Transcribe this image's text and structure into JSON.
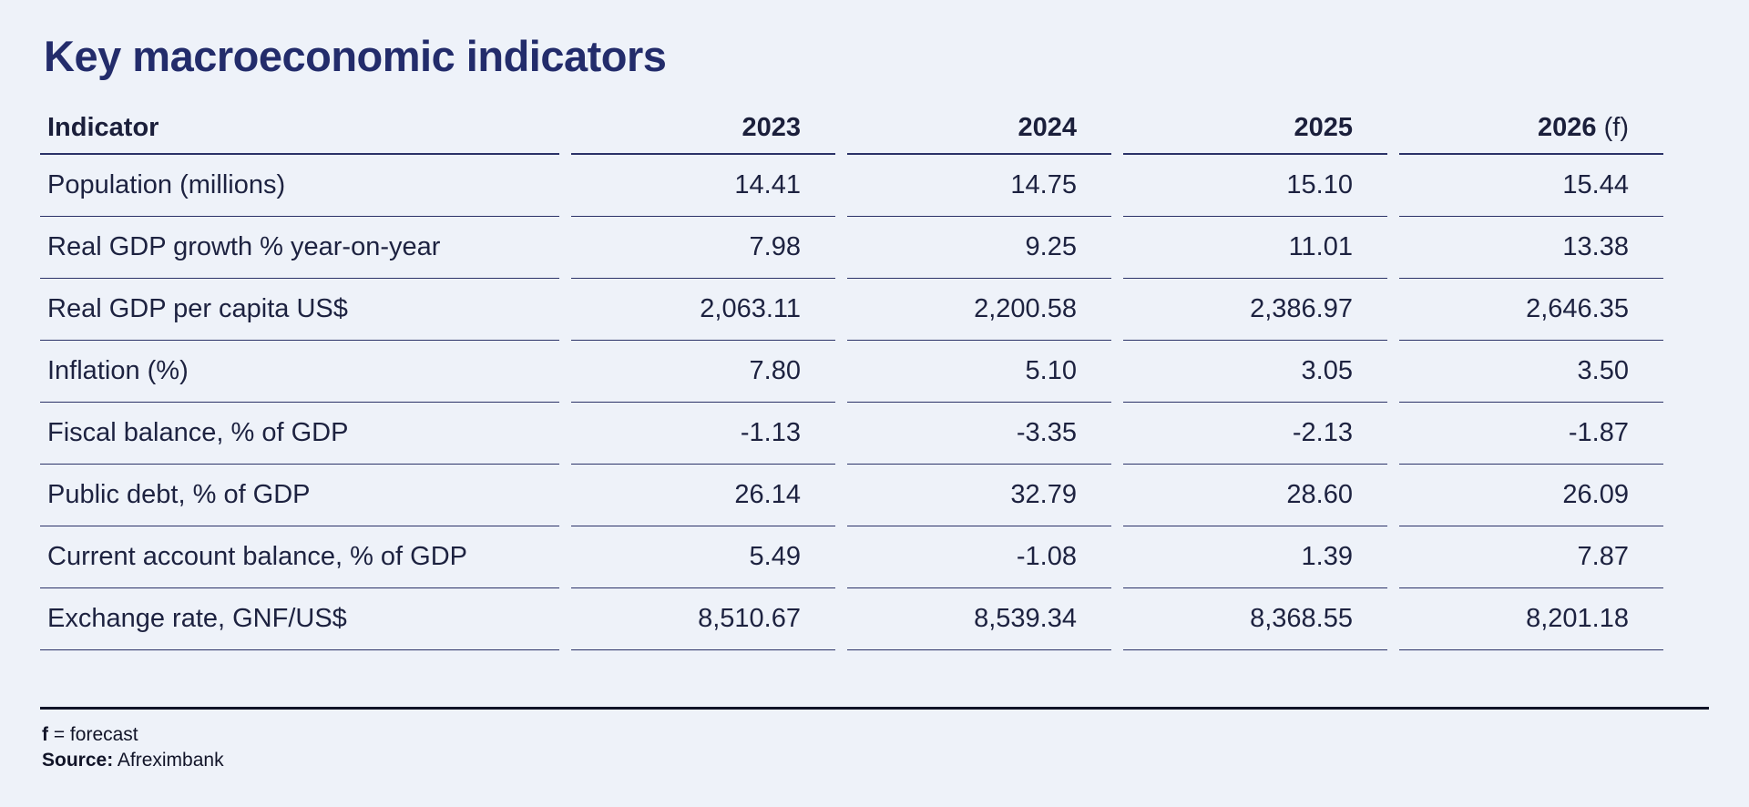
{
  "title": "Key macroeconomic indicators",
  "table": {
    "header": {
      "indicator": "Indicator",
      "years": [
        "2023",
        "2024",
        "2025",
        "2026"
      ],
      "forecast_suffix": "(f)"
    },
    "rows": [
      {
        "label": "Population (millions)",
        "values": [
          "14.41",
          "14.75",
          "15.10",
          "15.44"
        ]
      },
      {
        "label": "Real GDP growth % year-on-year",
        "values": [
          "7.98",
          "9.25",
          "11.01",
          "13.38"
        ]
      },
      {
        "label": "Real GDP per capita US$",
        "values": [
          "2,063.11",
          "2,200.58",
          "2,386.97",
          "2,646.35"
        ]
      },
      {
        "label": "Inflation (%)",
        "values": [
          "7.80",
          "5.10",
          "3.05",
          "3.50"
        ]
      },
      {
        "label": "Fiscal balance, % of GDP",
        "values": [
          "-1.13",
          "-3.35",
          "-2.13",
          "-1.87"
        ]
      },
      {
        "label": "Public debt, % of GDP",
        "values": [
          "26.14",
          "32.79",
          "28.60",
          "26.09"
        ]
      },
      {
        "label": "Current account balance, % of GDP",
        "values": [
          "5.49",
          "-1.08",
          "1.39",
          "7.87"
        ]
      },
      {
        "label": "Exchange rate, GNF/US$",
        "values": [
          "8,510.67",
          "8,539.34",
          "8,368.55",
          "8,201.18"
        ]
      }
    ]
  },
  "footnotes": {
    "forecast_key": "f",
    "forecast_text": " = forecast",
    "source_label": "Source:",
    "source_text": " Afreximbank"
  }
}
